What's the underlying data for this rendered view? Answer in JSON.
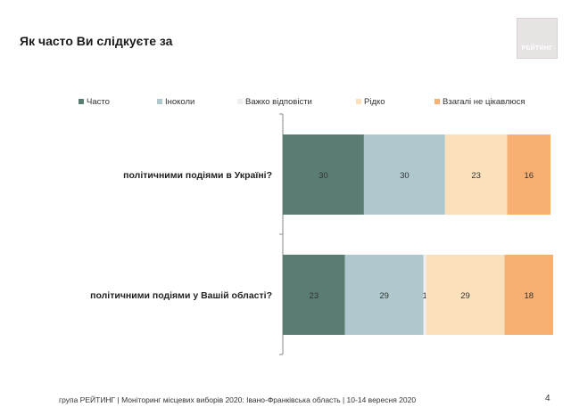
{
  "title": "Як часто Ви слідкуєте за",
  "logo_text": "РЕЙТИНГ",
  "footer": "група РЕЙТИНГ  | Моніторинг місцевих виборів 2020: Івано-Франківська область | 10-14 вересня 2020",
  "page_number": "4",
  "chart_data": {
    "type": "bar",
    "orientation": "horizontal",
    "stacked": true,
    "legend_position": "top",
    "xlim": [
      0,
      100
    ],
    "categories": [
      "політичними подіями в Україні?",
      "політичними подіями у Вашій області?"
    ],
    "series": [
      {
        "name": "Часто",
        "color": "#5a7d73",
        "values": [
          30,
          23
        ],
        "labels": [
          "30",
          "23"
        ]
      },
      {
        "name": "Іноколи",
        "color": "#aec8cd",
        "values": [
          30,
          29
        ],
        "labels": [
          "30",
          "29"
        ]
      },
      {
        "name": "Важко відповісти",
        "color": "#efefef",
        "values": [
          0,
          1
        ],
        "labels": [
          "",
          "1"
        ]
      },
      {
        "name": "Рідко",
        "color": "#fbe0bc",
        "values": [
          23,
          29
        ],
        "labels": [
          "23",
          "29"
        ]
      },
      {
        "name": "Взагалі не цікавлюся",
        "color": "#f8b072",
        "values": [
          16,
          18
        ],
        "labels": [
          "16",
          "18"
        ]
      }
    ]
  }
}
